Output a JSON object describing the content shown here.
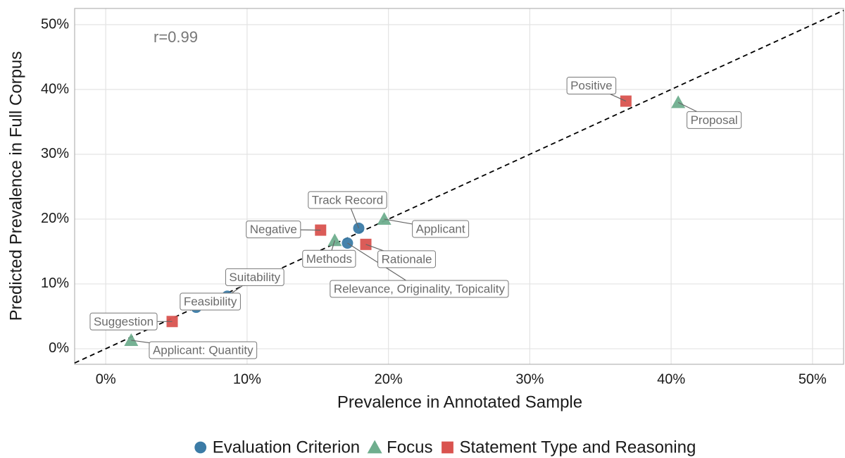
{
  "chart_data": {
    "type": "scatter",
    "annotation": "r=0.99",
    "x_label": "Prevalence in Annotated Sample",
    "y_label": "Predicted Prevalence in Full Corpus",
    "xlim": [
      -2.2,
      52.2
    ],
    "ylim": [
      -2.4,
      52.5
    ],
    "xticks": [
      {
        "value": 0,
        "label": "0%"
      },
      {
        "value": 10,
        "label": "10%"
      },
      {
        "value": 20,
        "label": "20%"
      },
      {
        "value": 30,
        "label": "30%"
      },
      {
        "value": 40,
        "label": "40%"
      },
      {
        "value": 50,
        "label": "50%"
      }
    ],
    "yticks": [
      {
        "value": 0,
        "label": "0%"
      },
      {
        "value": 10,
        "label": "10%"
      },
      {
        "value": 20,
        "label": "20%"
      },
      {
        "value": 30,
        "label": "30%"
      },
      {
        "value": 40,
        "label": "40%"
      },
      {
        "value": 50,
        "label": "50%"
      }
    ],
    "grid": true,
    "legend": "bottom",
    "series": [
      {
        "name": "Evaluation Criterion",
        "color": "#3b7ba6",
        "marker": "circle",
        "labels": [
          "Track Record",
          "Relevance, Originality, Topicality",
          "Suitability",
          "Feasibility"
        ],
        "x": [
          17.9,
          17.1,
          8.6,
          6.4
        ],
        "values": [
          18.6,
          16.3,
          8.1,
          6.4
        ]
      },
      {
        "name": "Focus",
        "color": "#6fae8e",
        "marker": "triangle",
        "labels": [
          "Proposal",
          "Applicant",
          "Methods",
          "Applicant: Quantity"
        ],
        "x": [
          40.5,
          19.7,
          16.2,
          1.8
        ],
        "values": [
          38.0,
          20.0,
          16.7,
          1.3
        ]
      },
      {
        "name": "Statement Type and Reasoning",
        "color": "#d9534f",
        "marker": "square",
        "labels": [
          "Positive",
          "Negative",
          "Rationale",
          "Suggestion"
        ],
        "x": [
          36.8,
          15.2,
          18.4,
          4.7
        ],
        "values": [
          38.2,
          18.3,
          16.1,
          4.2
        ]
      }
    ]
  }
}
